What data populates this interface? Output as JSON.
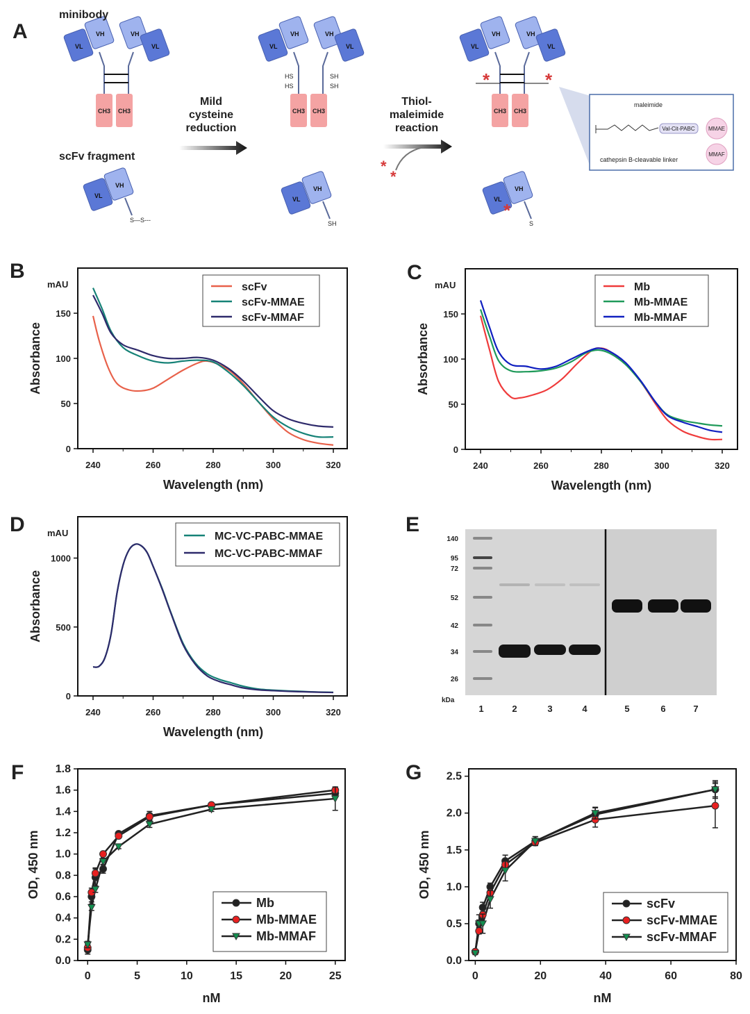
{
  "panel_labels": [
    "A",
    "B",
    "C",
    "D",
    "E",
    "F",
    "G"
  ],
  "schematic": {
    "minibody_label": "minibody",
    "scfv_label": "scFv fragment",
    "step1": [
      "Mild",
      "cysteine",
      "reduction"
    ],
    "step2": [
      "Thiol-",
      "maleimide",
      "reaction"
    ],
    "domains": {
      "vl": "VL",
      "vh": "VH",
      "ch3": "CH3"
    },
    "thiol": {
      "hs": "HS",
      "sh": "SH",
      "s": "S",
      "disulfide": "S—S---"
    },
    "inset": {
      "maleimide": "maleimide",
      "linker_box": "Val-Cit-PABC",
      "linker_label": "cathepsin B-cleavable linker",
      "payload1": "MMAE",
      "payload2": "MMAF"
    },
    "colors": {
      "variable_dark": "#5b78d6",
      "variable_light": "#9fb3ee",
      "constant": "#f4a3a3",
      "payload": "#d63a3a",
      "inset_border": "#4a6da8"
    }
  },
  "gel": {
    "marker_unit": "kDa",
    "marker_values": [
      "140",
      "95",
      "72",
      "52",
      "42",
      "34",
      "26"
    ],
    "lanes": [
      "1",
      "2",
      "3",
      "4",
      "5",
      "6",
      "7"
    ]
  },
  "chart_data": [
    {
      "id": "B",
      "type": "line",
      "xlabel": "Wavelength (nm)",
      "ylabel": "Absorbance",
      "unit": "mAU",
      "xlim": [
        240,
        320
      ],
      "ylim": [
        0,
        200
      ],
      "xticks": [
        240,
        260,
        280,
        300,
        320
      ],
      "yticks": [
        0,
        50,
        100,
        150
      ],
      "legend": "top-right",
      "grid": false,
      "series": [
        {
          "name": "scFv",
          "color": "#e8614a",
          "x": [
            240,
            242,
            245,
            248,
            252,
            256,
            260,
            265,
            270,
            275,
            278,
            282,
            286,
            290,
            295,
            300,
            305,
            310,
            315,
            320
          ],
          "y": [
            147,
            120,
            90,
            72,
            65,
            64,
            67,
            77,
            87,
            95,
            97,
            93,
            85,
            72,
            52,
            33,
            18,
            10,
            6,
            4
          ]
        },
        {
          "name": "scFv-MMAE",
          "color": "#168277",
          "x": [
            240,
            243,
            246,
            250,
            255,
            260,
            265,
            270,
            275,
            280,
            285,
            290,
            295,
            300,
            305,
            310,
            315,
            320
          ],
          "y": [
            178,
            155,
            130,
            112,
            103,
            97,
            95,
            97,
            98,
            96,
            85,
            70,
            52,
            35,
            24,
            17,
            13,
            13
          ]
        },
        {
          "name": "scFv-MMAF",
          "color": "#2e2a6b",
          "x": [
            240,
            243,
            246,
            250,
            255,
            260,
            265,
            270,
            275,
            280,
            285,
            290,
            295,
            300,
            305,
            310,
            315,
            320
          ],
          "y": [
            170,
            150,
            128,
            115,
            109,
            103,
            100,
            100,
            101,
            98,
            89,
            75,
            58,
            42,
            33,
            28,
            25,
            24
          ]
        }
      ]
    },
    {
      "id": "C",
      "type": "line",
      "xlabel": "Wavelength (nm)",
      "ylabel": "Absorbance",
      "unit": "mAU",
      "xlim": [
        240,
        320
      ],
      "ylim": [
        0,
        200
      ],
      "xticks": [
        240,
        260,
        280,
        300,
        320
      ],
      "yticks": [
        0,
        50,
        100,
        150
      ],
      "legend": "top-right",
      "grid": false,
      "series": [
        {
          "name": "Mb",
          "color": "#ef3b3b",
          "x": [
            240,
            243,
            246,
            250,
            253,
            257,
            262,
            267,
            272,
            277,
            280,
            283,
            288,
            293,
            298,
            302,
            307,
            312,
            316,
            320
          ],
          "y": [
            148,
            110,
            75,
            58,
            57,
            60,
            66,
            78,
            95,
            110,
            112,
            108,
            95,
            75,
            50,
            32,
            20,
            14,
            11,
            11
          ]
        },
        {
          "name": "Mb-MMAE",
          "color": "#1f9a5a",
          "x": [
            240,
            243,
            246,
            250,
            255,
            260,
            265,
            270,
            275,
            279,
            283,
            288,
            293,
            298,
            302,
            307,
            312,
            316,
            320
          ],
          "y": [
            155,
            125,
            98,
            87,
            86,
            87,
            90,
            97,
            107,
            110,
            106,
            94,
            75,
            52,
            38,
            32,
            29,
            27,
            26
          ]
        },
        {
          "name": "Mb-MMAF",
          "color": "#1020c0",
          "x": [
            240,
            243,
            246,
            250,
            255,
            260,
            265,
            270,
            275,
            279,
            283,
            288,
            293,
            298,
            302,
            307,
            312,
            316,
            320
          ],
          "y": [
            165,
            135,
            108,
            94,
            92,
            89,
            92,
            100,
            108,
            112,
            108,
            96,
            76,
            52,
            37,
            30,
            25,
            21,
            19
          ]
        }
      ]
    },
    {
      "id": "D",
      "type": "line",
      "xlabel": "Wavelength (nm)",
      "ylabel": "Absorbance",
      "unit": "mAU",
      "xlim": [
        240,
        320
      ],
      "ylim": [
        0,
        1300
      ],
      "xticks": [
        240,
        260,
        280,
        300,
        320
      ],
      "yticks": [
        0,
        500,
        1000
      ],
      "legend": "top-right",
      "grid": false,
      "series": [
        {
          "name": "MC-VC-PABC-MMAE",
          "color": "#168277",
          "x": [
            240,
            242,
            244,
            246,
            248,
            250,
            252,
            254,
            256,
            258,
            260,
            263,
            266,
            270,
            274,
            278,
            282,
            286,
            290,
            295,
            300,
            305,
            310,
            315,
            320
          ],
          "y": [
            210,
            215,
            280,
            450,
            750,
            950,
            1060,
            1100,
            1090,
            1040,
            940,
            780,
            600,
            380,
            240,
            160,
            120,
            95,
            70,
            50,
            42,
            36,
            32,
            28,
            26
          ]
        },
        {
          "name": "MC-VC-PABC-MMAF",
          "color": "#2e2a6b",
          "x": [
            240,
            242,
            244,
            246,
            248,
            250,
            252,
            254,
            256,
            258,
            260,
            263,
            266,
            270,
            274,
            278,
            282,
            286,
            290,
            295,
            300,
            305,
            310,
            315,
            320
          ],
          "y": [
            210,
            215,
            280,
            450,
            750,
            950,
            1060,
            1100,
            1090,
            1040,
            940,
            775,
            595,
            370,
            230,
            145,
            105,
            80,
            58,
            44,
            38,
            33,
            30,
            27,
            25
          ]
        }
      ]
    },
    {
      "id": "F",
      "type": "line",
      "xlabel": "nM",
      "ylabel": "OD, 450 nm",
      "xlim": [
        -1,
        26
      ],
      "ylim": [
        0,
        1.8
      ],
      "xticks": [
        0,
        5,
        10,
        15,
        20,
        25
      ],
      "yticks": [
        0,
        0.2,
        0.4,
        0.6,
        0.8,
        1.0,
        1.2,
        1.4,
        1.6,
        1.8
      ],
      "legend": "bottom-right",
      "grid": false,
      "series": [
        {
          "name": "Mb",
          "marker": "circle",
          "color": "#222222",
          "x": [
            0,
            0.39,
            0.78,
            1.56,
            3.125,
            6.25,
            12.5,
            25
          ],
          "y": [
            0.1,
            0.6,
            0.78,
            0.86,
            1.19,
            1.36,
            1.46,
            1.57
          ],
          "err": [
            0.04,
            0.05,
            0.08,
            0.04,
            0.02,
            0.04,
            0.02,
            0.04
          ]
        },
        {
          "name": "Mb-MMAE",
          "marker": "circle",
          "color": "#e82020",
          "x": [
            0,
            0.39,
            0.78,
            1.56,
            3.125,
            6.25,
            12.5,
            25
          ],
          "y": [
            0.12,
            0.64,
            0.82,
            1.0,
            1.17,
            1.35,
            1.46,
            1.6
          ],
          "err": [
            0.03,
            0.04,
            0.05,
            0.02,
            0.02,
            0.03,
            0.02,
            0.03
          ]
        },
        {
          "name": "Mb-MMAF",
          "marker": "triangle-down",
          "color": "#139050",
          "x": [
            0,
            0.39,
            0.78,
            1.56,
            3.125,
            6.25,
            12.5,
            25
          ],
          "y": [
            0.15,
            0.5,
            0.67,
            0.93,
            1.07,
            1.28,
            1.42,
            1.52
          ],
          "err": [
            0.03,
            0.03,
            0.03,
            0.03,
            0.02,
            0.03,
            0.02,
            0.11
          ]
        }
      ]
    },
    {
      "id": "G",
      "type": "line",
      "xlabel": "nM",
      "ylabel": "OD, 450 nm",
      "xlim": [
        -2,
        80
      ],
      "ylim": [
        0,
        2.6
      ],
      "xticks": [
        0,
        20,
        40,
        60,
        80
      ],
      "yticks": [
        0,
        0.5,
        1.0,
        1.5,
        2.0,
        2.5
      ],
      "legend": "bottom-right",
      "grid": false,
      "series": [
        {
          "name": "scFv",
          "marker": "circle",
          "color": "#222222",
          "x": [
            0,
            1.15,
            2.3,
            4.6,
            9.2,
            18.4,
            36.8,
            73.6
          ],
          "y": [
            0.12,
            0.5,
            0.72,
            1.0,
            1.35,
            1.62,
            1.98,
            2.32
          ],
          "err": [
            0.02,
            0.12,
            0.07,
            0.05,
            0.08,
            0.06,
            0.09,
            0.12
          ]
        },
        {
          "name": "scFv-MMAE",
          "marker": "circle",
          "color": "#e82020",
          "x": [
            0,
            1.15,
            2.3,
            4.6,
            9.2,
            18.4,
            36.8,
            73.6
          ],
          "y": [
            0.12,
            0.4,
            0.62,
            0.92,
            1.3,
            1.6,
            1.91,
            2.1
          ],
          "err": [
            0.02,
            0.04,
            0.04,
            0.05,
            0.05,
            0.04,
            0.1,
            0.3
          ]
        },
        {
          "name": "scFv-MMAF",
          "marker": "triangle-down",
          "color": "#139050",
          "x": [
            0,
            1.15,
            2.3,
            4.6,
            9.2,
            18.4,
            36.8,
            73.6
          ],
          "y": [
            0.1,
            0.5,
            0.5,
            0.83,
            1.22,
            1.62,
            2.0,
            2.32
          ],
          "err": [
            0.02,
            0.05,
            0.13,
            0.12,
            0.14,
            0.06,
            0.08,
            0.1
          ]
        }
      ]
    }
  ]
}
